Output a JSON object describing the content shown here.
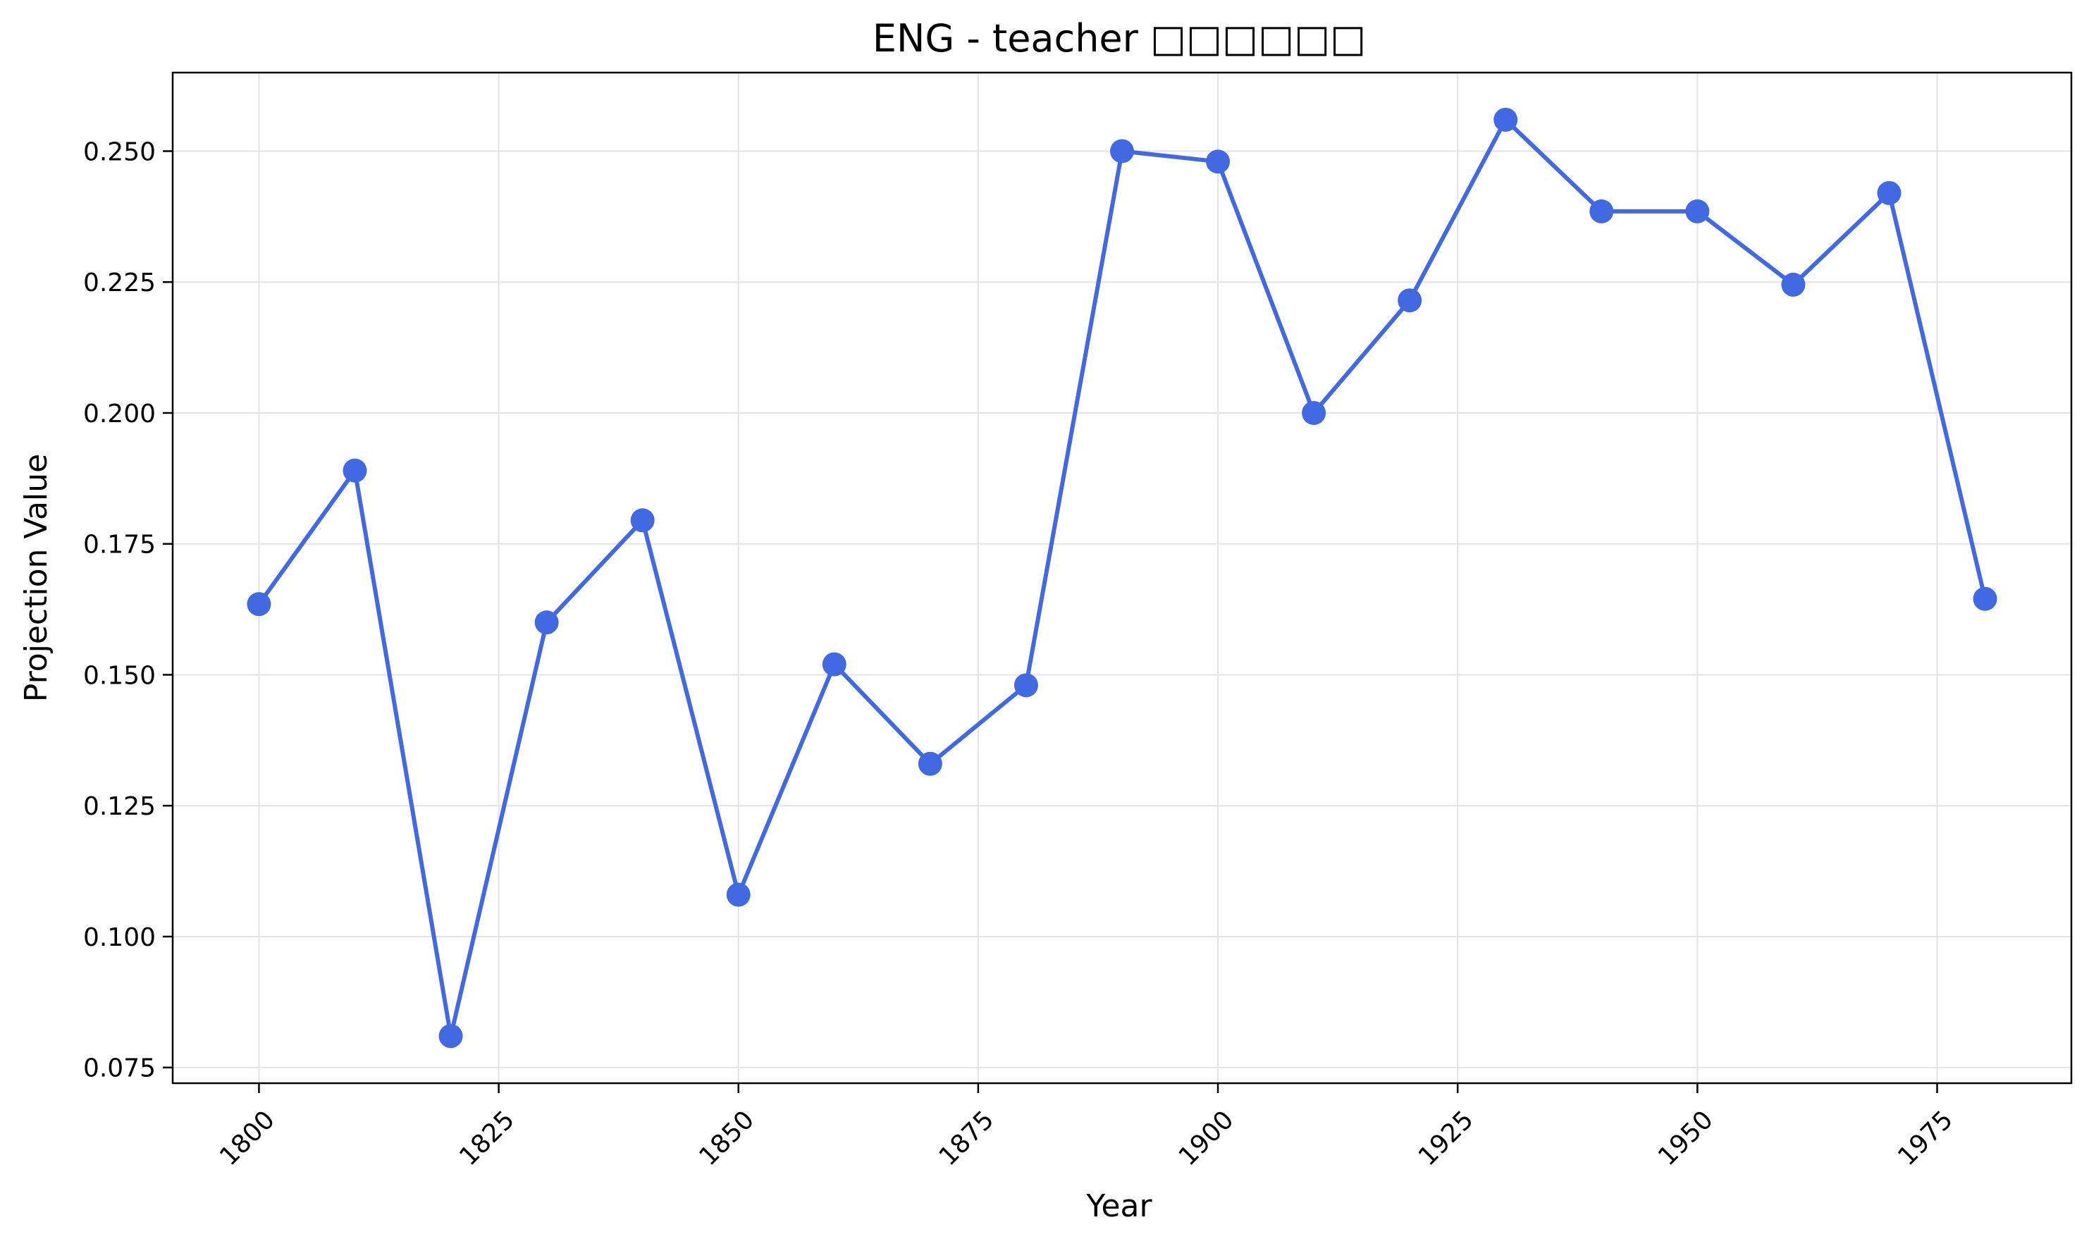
{
  "chart_data": {
    "type": "line",
    "title": "ENG - teacher □□□□□□",
    "xlabel": "Year",
    "ylabel": "Projection Value",
    "xlim": [
      1791,
      1989
    ],
    "ylim": [
      0.072,
      0.265
    ],
    "xticks": [
      1800,
      1825,
      1850,
      1875,
      1900,
      1925,
      1950,
      1975
    ],
    "yticks": [
      0.075,
      0.1,
      0.125,
      0.15,
      0.175,
      0.2,
      0.225,
      0.25
    ],
    "grid": true,
    "color": "#4169e1",
    "series": [
      {
        "x": [
          1800,
          1810,
          1820,
          1830,
          1840,
          1850,
          1860,
          1870,
          1880,
          1890,
          1900,
          1910,
          1920,
          1930,
          1940,
          1950,
          1960,
          1970,
          1980
        ],
        "y": [
          0.1635,
          0.189,
          0.081,
          0.16,
          0.1795,
          0.108,
          0.152,
          0.133,
          0.148,
          0.25,
          0.248,
          0.2,
          0.2215,
          0.256,
          0.2385,
          0.2385,
          0.2245,
          0.242,
          0.1645
        ]
      }
    ]
  }
}
